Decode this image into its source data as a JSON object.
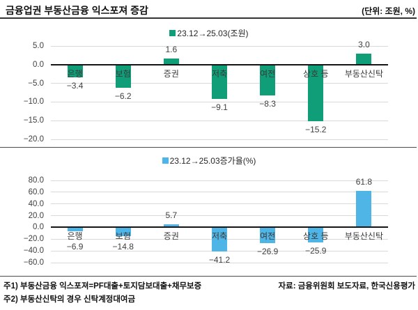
{
  "header": {
    "title": "금융업권 부동산금융 익스포져 증감",
    "unit": "(단위: 조원, %)"
  },
  "footnotes": {
    "note1": "주1) 부동산금융 익스포져=PF대출+토지담보대출+채무보증",
    "note2": "주2) 부동산신탁의 경우 신탁계정대여금",
    "source": "자료: 금융위원회 보도자료, 한국신용평가"
  },
  "colors": {
    "grid": "#d9d9d9",
    "zero_axis": "#141414",
    "text": "#404040"
  },
  "chart_data": [
    {
      "type": "bar",
      "legend": "23.12→25.03(조원)",
      "legend_position": "top",
      "color": "#0f9e77",
      "categories": [
        "은행",
        "보험",
        "증권",
        "저축",
        "여전",
        "상호 등",
        "부동산신탁"
      ],
      "values": [
        -3.4,
        -6.2,
        1.6,
        -9.1,
        -8.3,
        -15.2,
        3.0
      ],
      "ylim": [
        -20,
        5
      ],
      "ytick_step": 5,
      "grid": true,
      "xlabel": "",
      "ylabel": ""
    },
    {
      "type": "bar",
      "legend": "23.12→25.03증가율(%)",
      "legend_position": "top",
      "color": "#4fb5e6",
      "categories": [
        "은행",
        "보험",
        "증권",
        "저축",
        "여전",
        "상호 등",
        "부동산신탁"
      ],
      "values": [
        -6.9,
        -14.8,
        5.7,
        -41.2,
        -26.9,
        -25.9,
        61.8
      ],
      "ylim": [
        -60,
        80
      ],
      "ytick_step": 20,
      "grid": true,
      "xlabel": "",
      "ylabel": ""
    }
  ]
}
